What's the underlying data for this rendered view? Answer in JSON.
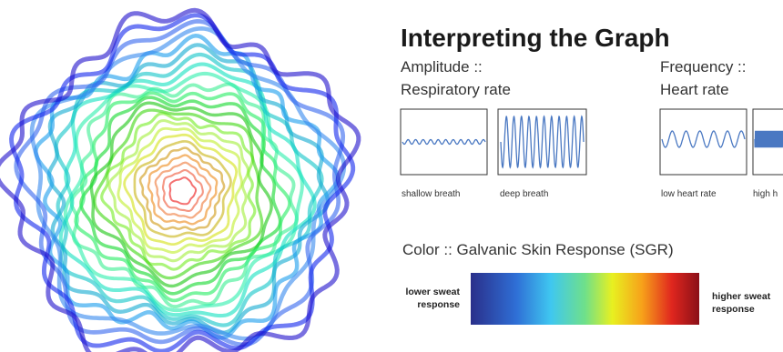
{
  "header": {
    "title": "Interpreting the Graph"
  },
  "amplitude": {
    "label": "Amplitude ::",
    "sublabel": "Respiratory rate",
    "examples": [
      "shallow breath",
      "deep breath"
    ]
  },
  "frequency": {
    "label": "Frequency ::",
    "sublabel": "Heart rate",
    "examples": [
      "low heart rate",
      "high h"
    ]
  },
  "color": {
    "label": "Color :: Galvanic Skin Response (SGR)",
    "low": "lower sweat response",
    "high": "higher sweat response"
  }
}
